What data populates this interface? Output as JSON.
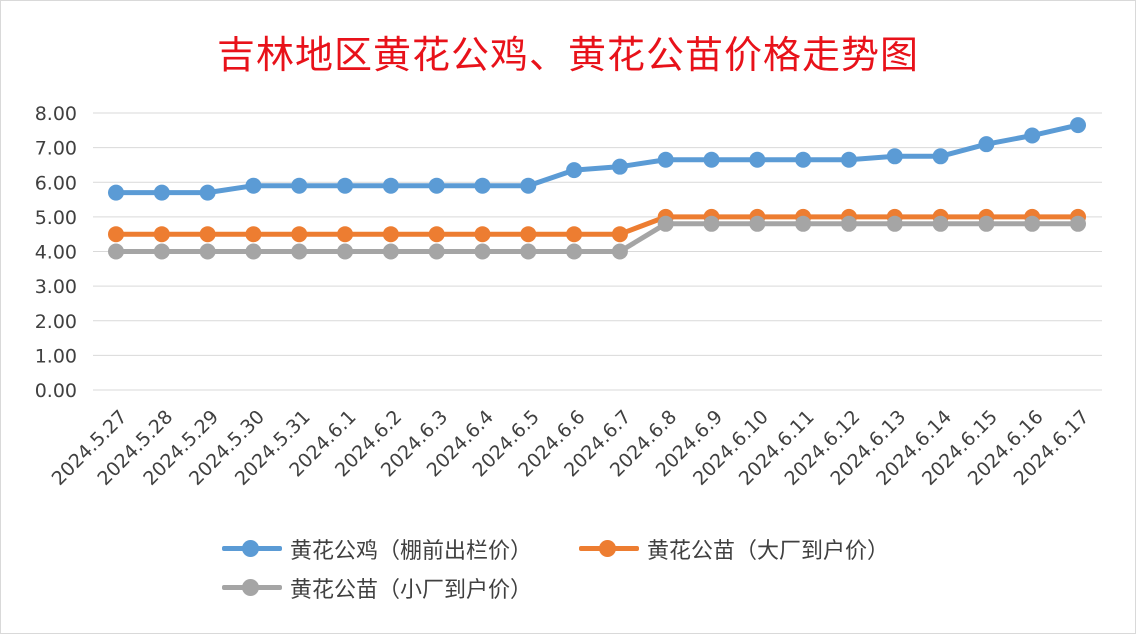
{
  "chart_data": {
    "type": "line",
    "title": "吉林地区黄花公鸡、黄花公苗价格走势图",
    "categories": [
      "2024.5.27",
      "2024.5.28",
      "2024.5.29",
      "2024.5.30",
      "2024.5.31",
      "2024.6.1",
      "2024.6.2",
      "2024.6.3",
      "2024.6.4",
      "2024.6.5",
      "2024.6.6",
      "2024.6.7",
      "2024.6.8",
      "2024.6.9",
      "2024.6.10",
      "2024.6.11",
      "2024.6.12",
      "2024.6.13",
      "2024.6.14",
      "2024.6.15",
      "2024.6.16",
      "2024.6.17"
    ],
    "y_ticks": [
      "0.00",
      "1.00",
      "2.00",
      "3.00",
      "4.00",
      "5.00",
      "6.00",
      "7.00",
      "8.00"
    ],
    "ylim": [
      0,
      8
    ],
    "grid": true,
    "legend_position": "bottom",
    "series": [
      {
        "name": "黄花公鸡（棚前出栏价）",
        "color": "#5b9bd5",
        "values": [
          5.7,
          5.7,
          5.7,
          5.9,
          5.9,
          5.9,
          5.9,
          5.9,
          5.9,
          5.9,
          6.35,
          6.45,
          6.65,
          6.65,
          6.65,
          6.65,
          6.65,
          6.75,
          6.75,
          7.1,
          7.35,
          7.65
        ]
      },
      {
        "name": "黄花公苗（大厂到户价）",
        "color": "#ed7d31",
        "values": [
          4.5,
          4.5,
          4.5,
          4.5,
          4.5,
          4.5,
          4.5,
          4.5,
          4.5,
          4.5,
          4.5,
          4.5,
          5.0,
          5.0,
          5.0,
          5.0,
          5.0,
          5.0,
          5.0,
          5.0,
          5.0,
          5.0
        ]
      },
      {
        "name": "黄花公苗（小厂到户价）",
        "color": "#a5a5a5",
        "values": [
          4.0,
          4.0,
          4.0,
          4.0,
          4.0,
          4.0,
          4.0,
          4.0,
          4.0,
          4.0,
          4.0,
          4.0,
          4.8,
          4.8,
          4.8,
          4.8,
          4.8,
          4.8,
          4.8,
          4.8,
          4.8,
          4.8
        ]
      }
    ]
  }
}
